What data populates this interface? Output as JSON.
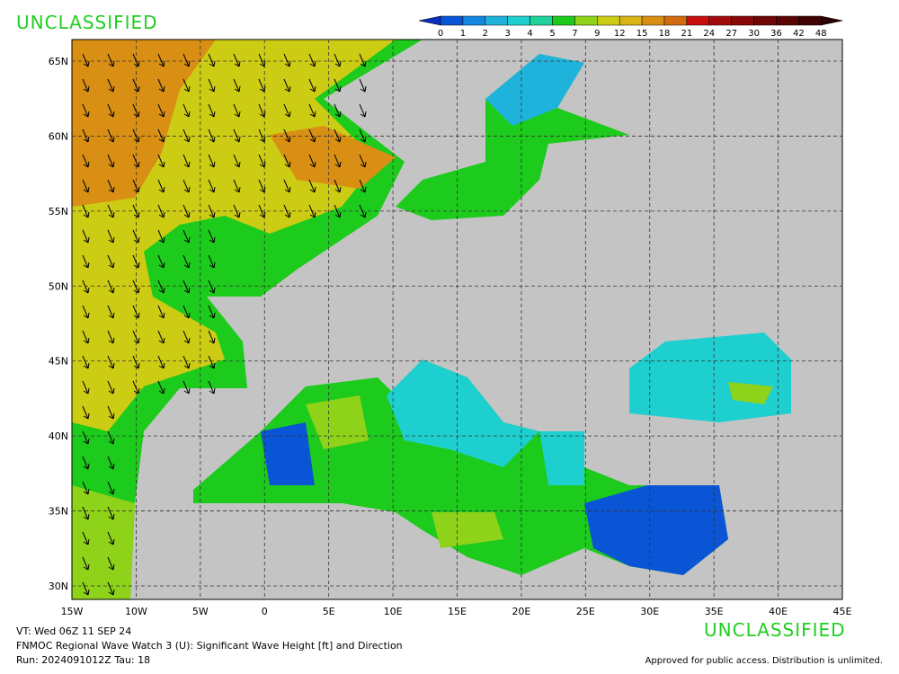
{
  "header": {
    "classification": "UNCLASSIFIED"
  },
  "colorbar": {
    "labels": [
      "0",
      "1",
      "2",
      "3",
      "4",
      "5",
      "7",
      "9",
      "12",
      "15",
      "18",
      "21",
      "24",
      "27",
      "30",
      "36",
      "42",
      "48"
    ],
    "colors": [
      "#0a2fbf",
      "#0a55d6",
      "#1487e0",
      "#1fb3dc",
      "#1ecfcf",
      "#1fd39b",
      "#1ccb1c",
      "#8ed21a",
      "#cccc14",
      "#d9b414",
      "#d98f14",
      "#d46a0f",
      "#c80f0f",
      "#a00c0c",
      "#880808",
      "#700606",
      "#5a0404",
      "#400202",
      "#2a0101"
    ]
  },
  "map": {
    "lat_labels": [
      "65N",
      "60N",
      "55N",
      "50N",
      "45N",
      "40N",
      "35N",
      "30N"
    ],
    "lon_labels": [
      "15W",
      "10W",
      "5W",
      "0",
      "5E",
      "10E",
      "15E",
      "20E",
      "25E",
      "30E",
      "35E",
      "40E",
      "45E"
    ]
  },
  "footer": {
    "valid_time": "VT: Wed 06Z 11 SEP 24",
    "product": "FNMOC Regional Wave Watch 3 (U): Significant Wave Height [ft] and Direction",
    "run": "Run: 2024091012Z Tau: 18",
    "classification": "UNCLASSIFIED",
    "release": "Approved for public access. Distribution is unlimited."
  }
}
